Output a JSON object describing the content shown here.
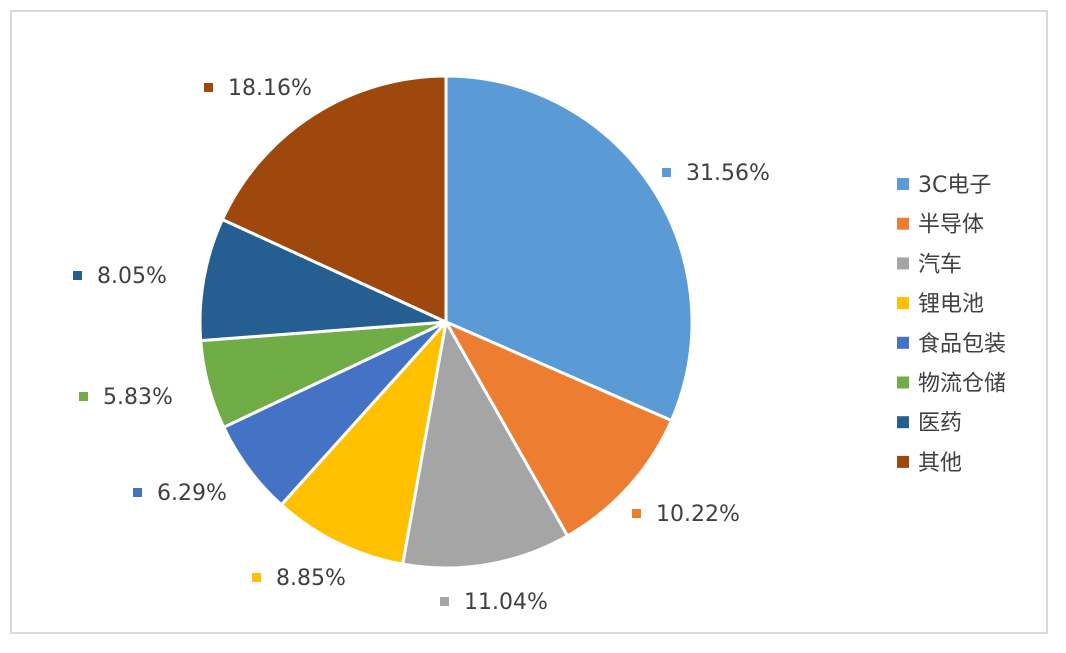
{
  "chart_data": {
    "type": "pie",
    "categories": [
      "3C电子",
      "半导体",
      "汽车",
      "锂电池",
      "食品包装",
      "物流仓储",
      "医药",
      "其他"
    ],
    "values": [
      31.56,
      10.22,
      11.04,
      8.85,
      6.29,
      5.83,
      8.05,
      18.16
    ],
    "labels": [
      "31.56%",
      "10.22%",
      "11.04%",
      "8.85%",
      "6.29%",
      "5.83%",
      "8.05%",
      "18.16%"
    ],
    "colors": [
      "#5b9bd5",
      "#ed7d31",
      "#a5a5a5",
      "#ffc000",
      "#4472c4",
      "#70ad47",
      "#255e91",
      "#9e480e"
    ],
    "legend_position": "right",
    "start_angle": "12 o'clock",
    "direction": "clockwise"
  }
}
